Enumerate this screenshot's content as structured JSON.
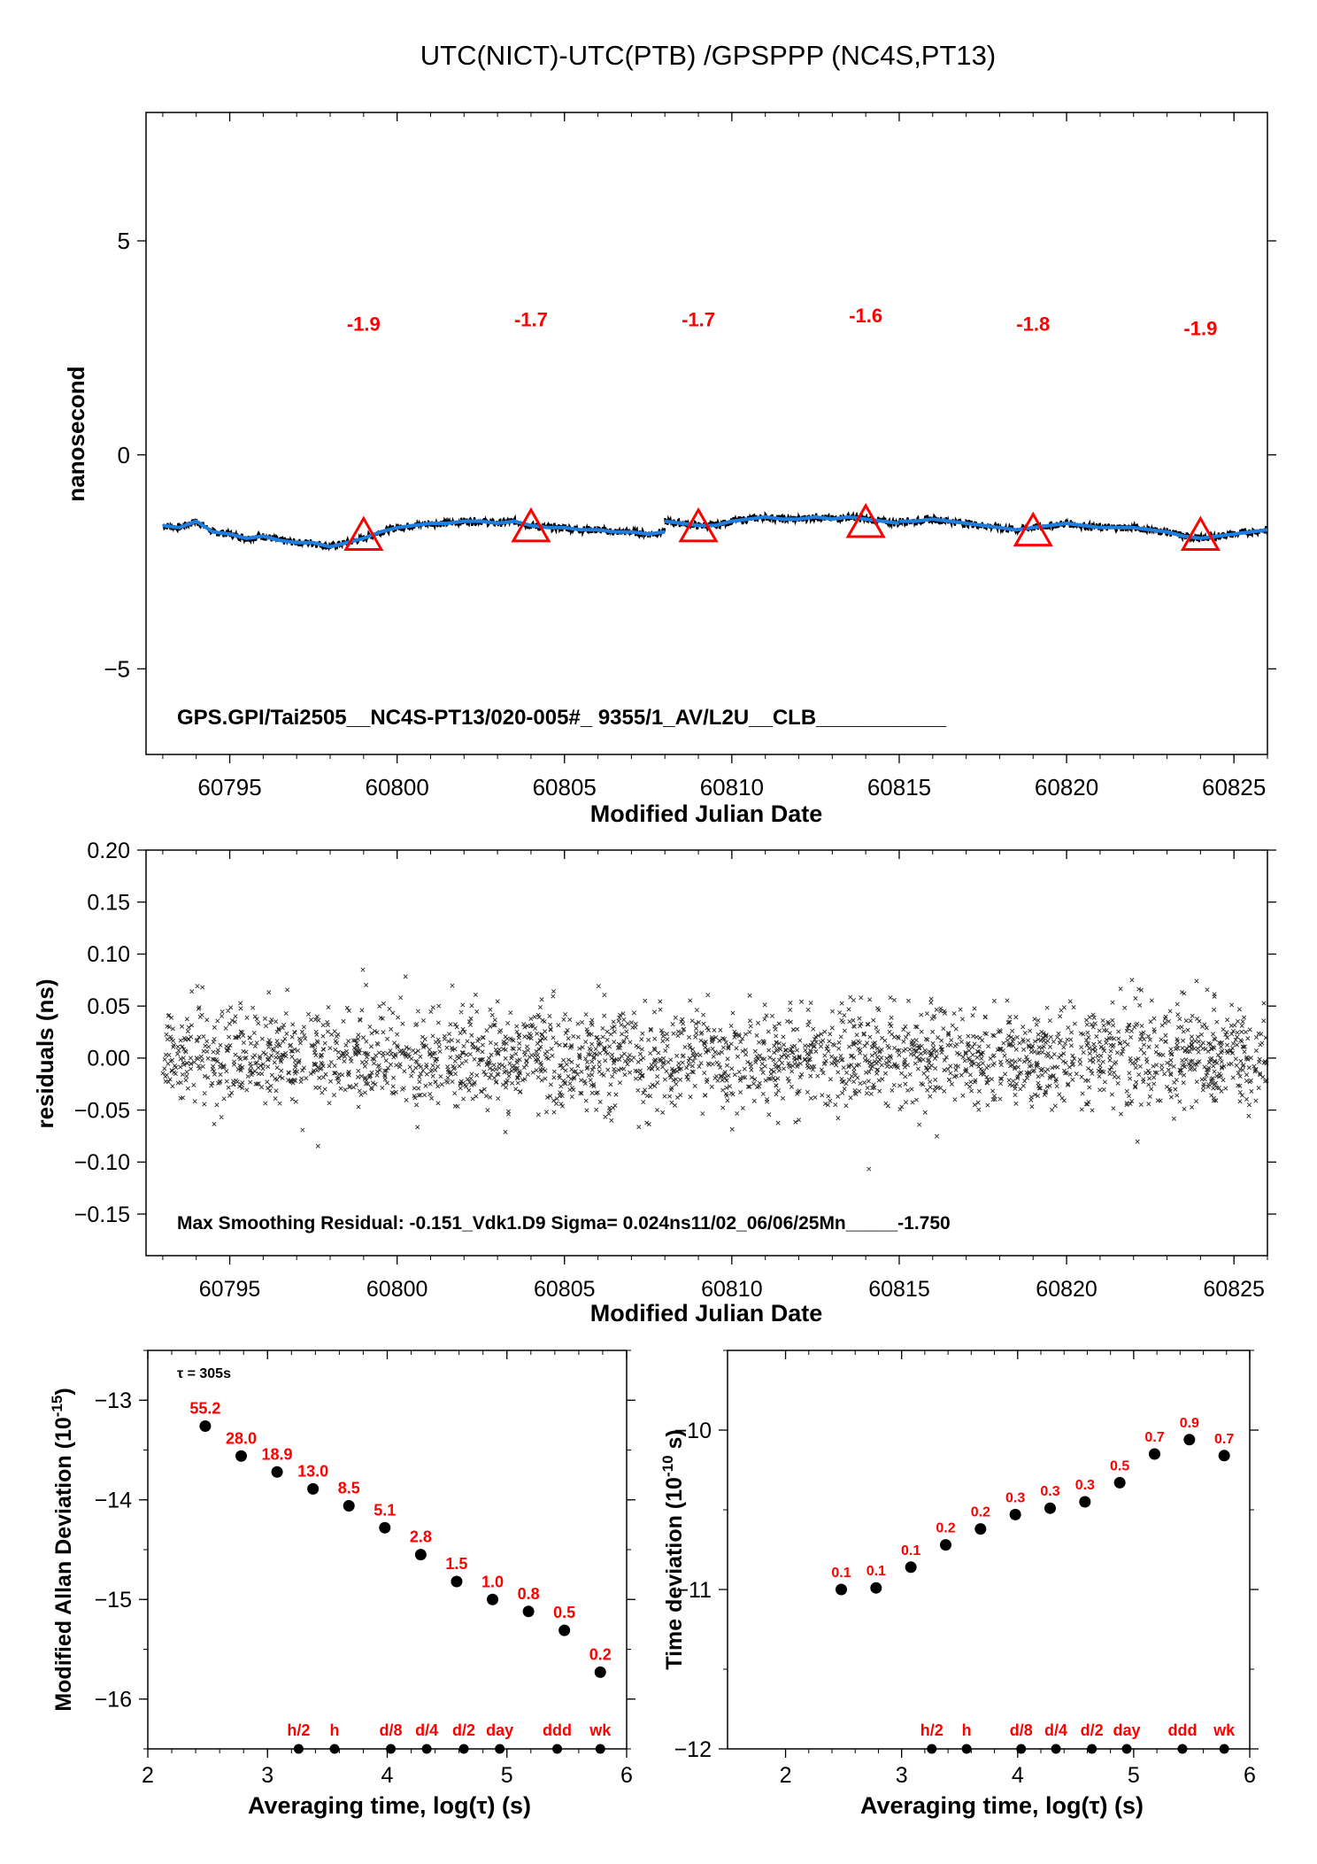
{
  "page_title": "UTC(NICT)-UTC(PTB)  /GPSPPP  (NC4S,PT13)",
  "chart_data": [
    {
      "id": "top",
      "type": "line",
      "ylabel": "nanosecond",
      "xlabel": "Modified Julian Date",
      "xlim": [
        60792.5,
        60826
      ],
      "ylim": [
        -7,
        8
      ],
      "xticks": [
        60795,
        60800,
        60805,
        60810,
        60815,
        60820,
        60825
      ],
      "yticks": [
        -5,
        0,
        5
      ],
      "annotation": "GPS.GPI/Tai2505__NC4S-PT13/020-005#_  9355/1_AV/L2U__CLB___________",
      "series_color": "#1f7fe0",
      "marker_color": "#ff0000",
      "line_segments": [
        [
          [
            60793.0,
            -1.65
          ],
          [
            60793.5,
            -1.7
          ],
          [
            60794.0,
            -1.55
          ],
          [
            60794.5,
            -1.8
          ],
          [
            60795.0,
            -1.85
          ],
          [
            60795.5,
            -1.95
          ],
          [
            60796.0,
            -1.9
          ],
          [
            60796.5,
            -2.0
          ],
          [
            60797.0,
            -2.05
          ],
          [
            60797.5,
            -2.05
          ],
          [
            60798.0,
            -2.15
          ],
          [
            60798.5,
            -2.05
          ],
          [
            60799.0,
            -1.95
          ],
          [
            60799.5,
            -1.8
          ],
          [
            60800.0,
            -1.7
          ],
          [
            60800.5,
            -1.65
          ],
          [
            60801.0,
            -1.6
          ],
          [
            60801.5,
            -1.6
          ],
          [
            60802.0,
            -1.55
          ],
          [
            60802.5,
            -1.55
          ],
          [
            60803.0,
            -1.6
          ],
          [
            60803.5,
            -1.55
          ],
          [
            60804.0,
            -1.65
          ],
          [
            60804.5,
            -1.7
          ],
          [
            60805.0,
            -1.7
          ],
          [
            60805.5,
            -1.75
          ],
          [
            60806.0,
            -1.75
          ],
          [
            60806.5,
            -1.8
          ],
          [
            60807.0,
            -1.8
          ],
          [
            60807.5,
            -1.85
          ],
          [
            60808.0,
            -1.8
          ]
        ],
        [
          [
            60808.0,
            -1.55
          ],
          [
            60808.5,
            -1.6
          ],
          [
            60809.0,
            -1.65
          ],
          [
            60809.5,
            -1.65
          ],
          [
            60810.0,
            -1.55
          ],
          [
            60810.5,
            -1.5
          ],
          [
            60811.0,
            -1.45
          ],
          [
            60811.5,
            -1.5
          ],
          [
            60812.0,
            -1.5
          ],
          [
            60812.5,
            -1.45
          ],
          [
            60813.0,
            -1.5
          ],
          [
            60813.5,
            -1.45
          ],
          [
            60814.0,
            -1.5
          ],
          [
            60814.5,
            -1.55
          ],
          [
            60815.0,
            -1.6
          ]
        ],
        [
          [
            60815.0,
            -1.55
          ],
          [
            60815.5,
            -1.55
          ],
          [
            60816.0,
            -1.5
          ],
          [
            60816.5,
            -1.55
          ],
          [
            60817.0,
            -1.6
          ],
          [
            60817.5,
            -1.65
          ],
          [
            60818.0,
            -1.7
          ],
          [
            60818.5,
            -1.75
          ],
          [
            60819.0,
            -1.7
          ],
          [
            60819.5,
            -1.65
          ],
          [
            60820.0,
            -1.6
          ],
          [
            60820.5,
            -1.65
          ],
          [
            60821.0,
            -1.7
          ],
          [
            60821.5,
            -1.7
          ],
          [
            60822.0,
            -1.7
          ],
          [
            60822.5,
            -1.75
          ],
          [
            60823.0,
            -1.8
          ],
          [
            60823.5,
            -1.9
          ],
          [
            60824.0,
            -1.95
          ],
          [
            60824.5,
            -1.9
          ],
          [
            60825.0,
            -1.85
          ],
          [
            60825.5,
            -1.8
          ],
          [
            60826.0,
            -1.75
          ]
        ]
      ],
      "triangles": [
        {
          "x": 60799,
          "y": -1.9,
          "label": "-1.9",
          "label_y": 2.9
        },
        {
          "x": 60804,
          "y": -1.7,
          "label": "-1.7",
          "label_y": 3.0
        },
        {
          "x": 60809,
          "y": -1.7,
          "label": "-1.7",
          "label_y": 3.0
        },
        {
          "x": 60814,
          "y": -1.6,
          "label": "-1.6",
          "label_y": 3.1
        },
        {
          "x": 60819,
          "y": -1.8,
          "label": "-1.8",
          "label_y": 2.9
        },
        {
          "x": 60824,
          "y": -1.9,
          "label": "-1.9",
          "label_y": 2.8
        }
      ]
    },
    {
      "id": "residuals",
      "type": "scatter",
      "ylabel": "residuals (ns)",
      "xlabel": "Modified Julian Date",
      "xlim": [
        60792.5,
        60826
      ],
      "ylim": [
        -0.19,
        0.2
      ],
      "xticks": [
        60795,
        60800,
        60805,
        60810,
        60815,
        60820,
        60825
      ],
      "yticks": [
        -0.15,
        -0.1,
        -0.05,
        0.0,
        0.05,
        0.1,
        0.15,
        0.2
      ],
      "ytick_labels": [
        "−0.15",
        "−0.10",
        "−0.05",
        "0.00",
        "0.05",
        "0.10",
        "0.15",
        "0.20"
      ],
      "annotation": "Max Smoothing Residual: -0.151_Vdk1.D9  Sigma= 0.024ns11/02_06/06/25Mn_____-1.750",
      "sigma": 0.024,
      "x_range": [
        60793,
        60826
      ],
      "max_residual": -0.151,
      "marker": "x"
    },
    {
      "id": "mdev",
      "type": "scatter",
      "ylabel": "Modified Allan Deviation (10",
      "ylabel_sup": "-15",
      "ylabel_end": ")",
      "xlabel": "Averaging time, log(τ) (s)",
      "tau_note": "τ = 305s",
      "xlim": [
        2,
        6
      ],
      "ylim": [
        -16.5,
        -12.5
      ],
      "xticks": [
        2,
        3,
        4,
        5,
        6
      ],
      "yticks": [
        -16,
        -15,
        -14,
        -13
      ],
      "ytick_labels": [
        "−16",
        "−15",
        "−14",
        "−13"
      ],
      "points": [
        {
          "x": 2.48,
          "y": -13.26,
          "label": "55.2"
        },
        {
          "x": 2.78,
          "y": -13.56,
          "label": "28.0"
        },
        {
          "x": 3.08,
          "y": -13.72,
          "label": "18.9"
        },
        {
          "x": 3.38,
          "y": -13.89,
          "label": "13.0"
        },
        {
          "x": 3.68,
          "y": -14.06,
          "label": "8.5"
        },
        {
          "x": 3.98,
          "y": -14.28,
          "label": "5.1"
        },
        {
          "x": 4.28,
          "y": -14.55,
          "label": "2.8"
        },
        {
          "x": 4.58,
          "y": -14.82,
          "label": "1.5"
        },
        {
          "x": 4.88,
          "y": -15.0,
          "label": "1.0"
        },
        {
          "x": 5.18,
          "y": -15.12,
          "label": "0.8"
        },
        {
          "x": 5.48,
          "y": -15.31,
          "label": "0.5"
        },
        {
          "x": 5.78,
          "y": -15.73,
          "label": "0.2"
        }
      ],
      "time_markers": [
        {
          "x": 3.26,
          "label": "h/2"
        },
        {
          "x": 3.56,
          "label": "h"
        },
        {
          "x": 4.03,
          "label": "d/8"
        },
        {
          "x": 4.33,
          "label": "d/4"
        },
        {
          "x": 4.64,
          "label": "d/2"
        },
        {
          "x": 4.94,
          "label": "day"
        },
        {
          "x": 5.42,
          "label": "ddd"
        },
        {
          "x": 5.78,
          "label": "wk"
        }
      ]
    },
    {
      "id": "tdev",
      "type": "scatter",
      "ylabel": "Time deviation (10",
      "ylabel_sup": "-10",
      "ylabel_end": " s)",
      "xlabel": "Averaging time, log(τ) (s)",
      "xlim": [
        1.5,
        6
      ],
      "ylim": [
        -12,
        -9.5
      ],
      "xticks": [
        2,
        3,
        4,
        5,
        6
      ],
      "yticks": [
        -12,
        -11,
        -10
      ],
      "ytick_labels": [
        "−12",
        "−11",
        "−10"
      ],
      "points": [
        {
          "x": 2.48,
          "y": -11.0,
          "label": "0.1"
        },
        {
          "x": 2.78,
          "y": -10.99,
          "label": "0.1"
        },
        {
          "x": 3.08,
          "y": -10.86,
          "label": "0.1"
        },
        {
          "x": 3.38,
          "y": -10.72,
          "label": "0.2"
        },
        {
          "x": 3.68,
          "y": -10.62,
          "label": "0.2"
        },
        {
          "x": 3.98,
          "y": -10.53,
          "label": "0.3"
        },
        {
          "x": 4.28,
          "y": -10.49,
          "label": "0.3"
        },
        {
          "x": 4.58,
          "y": -10.45,
          "label": "0.3"
        },
        {
          "x": 4.88,
          "y": -10.33,
          "label": "0.5"
        },
        {
          "x": 5.18,
          "y": -10.15,
          "label": "0.7"
        },
        {
          "x": 5.48,
          "y": -10.06,
          "label": "0.9"
        },
        {
          "x": 5.78,
          "y": -10.16,
          "label": "0.7"
        }
      ],
      "time_markers": [
        {
          "x": 3.26,
          "label": "h/2"
        },
        {
          "x": 3.56,
          "label": "h"
        },
        {
          "x": 4.03,
          "label": "d/8"
        },
        {
          "x": 4.33,
          "label": "d/4"
        },
        {
          "x": 4.64,
          "label": "d/2"
        },
        {
          "x": 4.94,
          "label": "day"
        },
        {
          "x": 5.42,
          "label": "ddd"
        },
        {
          "x": 5.78,
          "label": "wk"
        }
      ]
    }
  ]
}
